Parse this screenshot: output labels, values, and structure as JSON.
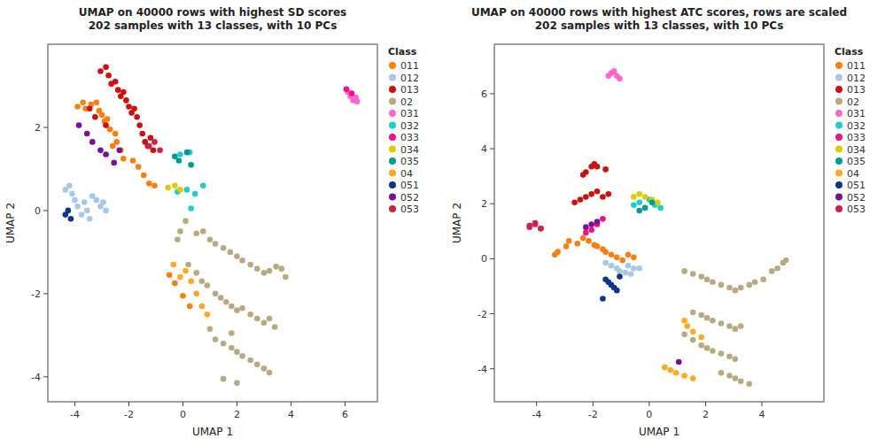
{
  "chart_data": [
    {
      "type": "scatter",
      "title": "UMAP on 40000 rows with highest SD scores\n202 samples with 13 classes, with 10 PCs",
      "xlabel": "UMAP 1",
      "ylabel": "UMAP 2",
      "legend_title": "Class",
      "legend": "right",
      "grid": false,
      "xlim": [
        -5.0,
        7.2
      ],
      "ylim": [
        -4.6,
        4.0
      ],
      "xticks": [
        -4,
        -2,
        0,
        2,
        4,
        6
      ],
      "yticks": [
        -4,
        -2,
        0,
        2
      ],
      "series": [
        {
          "name": "011",
          "color": "#F97F10",
          "x": [
            -3.9,
            -3.7,
            -3.6,
            -3.4,
            -3.2,
            -3.1,
            -3.0,
            -2.9,
            -2.8,
            -2.7,
            -2.5,
            -2.6,
            -2.45,
            -2.3,
            -2.2,
            -1.85,
            -1.65,
            -1.45,
            -1.25,
            -1.05,
            -0.5,
            -0.3,
            0.0,
            0.25
          ],
          "values": [
            2.5,
            2.6,
            2.45,
            2.55,
            2.6,
            2.4,
            2.3,
            2.15,
            2.2,
            1.95,
            1.85,
            1.55,
            1.65,
            1.45,
            1.25,
            1.2,
            1.05,
            0.85,
            0.65,
            0.6,
            -1.55,
            -1.75,
            -2.05,
            -2.3
          ]
        },
        {
          "name": "012",
          "color": "#A8C8E8",
          "x": [
            -4.35,
            -4.2,
            -4.1,
            -4.0,
            -3.9,
            -3.75,
            -3.65,
            -3.55,
            -3.45,
            -3.35,
            -3.2,
            -3.05,
            -2.95,
            -2.85
          ],
          "values": [
            0.5,
            0.6,
            0.4,
            0.25,
            0.1,
            -0.1,
            0.2,
            0.0,
            -0.2,
            0.35,
            0.25,
            0.1,
            0.2,
            0.0
          ]
        },
        {
          "name": "013",
          "color": "#CC1111",
          "x": [
            -3.05,
            -2.85,
            -2.75,
            -2.65,
            -2.5,
            -2.4,
            -2.3,
            -2.2,
            -2.1,
            -2.0,
            -1.9,
            -1.8,
            -1.7,
            -1.6,
            -1.5,
            -1.4,
            -1.3,
            -1.2,
            -1.1,
            -3.45,
            -3.25,
            -2.85
          ],
          "values": [
            3.35,
            3.45,
            3.25,
            3.05,
            3.1,
            2.9,
            2.75,
            2.85,
            2.65,
            2.5,
            2.35,
            2.45,
            2.25,
            2.05,
            1.85,
            1.65,
            1.55,
            1.75,
            1.45,
            2.45,
            2.25,
            2.05
          ]
        },
        {
          "name": "02",
          "color": "#B8AA80",
          "x": [
            0.1,
            0.5,
            0.75,
            1.0,
            1.2,
            1.5,
            1.75,
            2.0,
            2.2,
            2.5,
            2.75,
            3.0,
            3.2,
            3.45,
            3.65,
            3.8,
            -0.2,
            -0.1,
            0.2,
            0.5,
            0.7,
            0.9,
            1.2,
            1.4,
            1.6,
            1.8,
            2.0,
            2.2,
            2.5,
            2.75,
            3.0,
            3.2,
            3.4,
            1.0,
            1.2,
            1.5,
            1.8,
            2.0,
            2.2,
            2.5,
            2.75,
            3.0,
            3.2,
            1.5,
            2.0,
            1.8
          ],
          "values": [
            -0.25,
            -0.55,
            -0.5,
            -0.7,
            -0.8,
            -0.9,
            -1.0,
            -1.1,
            -1.2,
            -1.3,
            -1.4,
            -1.5,
            -1.45,
            -1.35,
            -1.4,
            -1.6,
            -0.7,
            -0.5,
            -1.3,
            -1.5,
            -1.7,
            -1.8,
            -2.0,
            -2.1,
            -2.2,
            -2.3,
            -2.4,
            -2.35,
            -2.5,
            -2.6,
            -2.7,
            -2.6,
            -2.8,
            -2.85,
            -3.1,
            -3.2,
            -3.3,
            -3.4,
            -3.5,
            -3.6,
            -3.7,
            -3.8,
            -3.9,
            -4.05,
            -4.15,
            -2.95
          ]
        },
        {
          "name": "031",
          "color": "#FF66CC",
          "x": [
            6.1,
            6.2,
            6.3,
            6.4,
            6.45
          ],
          "values": [
            2.85,
            2.75,
            2.65,
            2.72,
            2.62
          ]
        },
        {
          "name": "032",
          "color": "#22CCCC",
          "x": [
            -0.2,
            0.15,
            0.45,
            0.75,
            0.3,
            -0.1,
            0.25
          ],
          "values": [
            0.45,
            0.5,
            0.4,
            0.6,
            0.05,
            1.35,
            1.4
          ]
        },
        {
          "name": "033",
          "color": "#EE1188",
          "x": [
            6.05,
            6.25
          ],
          "values": [
            2.92,
            2.82
          ]
        },
        {
          "name": "034",
          "color": "#DDCC00",
          "x": [
            -0.55,
            -0.3,
            -0.1
          ],
          "values": [
            0.55,
            0.6,
            0.5
          ]
        },
        {
          "name": "035",
          "color": "#009999",
          "x": [
            -0.3,
            0.15,
            -0.15,
            0.3
          ],
          "values": [
            1.3,
            1.4,
            1.2,
            1.1
          ]
        },
        {
          "name": "04",
          "color": "#FFAA22",
          "x": [
            -0.35,
            -0.1,
            0.1,
            0.3,
            0.5,
            0.7,
            0.9
          ],
          "values": [
            -1.3,
            -1.6,
            -1.45,
            -1.7,
            -2.0,
            -2.3,
            -2.5
          ]
        },
        {
          "name": "051",
          "color": "#113388",
          "x": [
            -4.35,
            -4.25,
            -4.15
          ],
          "values": [
            -0.1,
            0.0,
            -0.2
          ]
        },
        {
          "name": "052",
          "color": "#771199",
          "x": [
            -3.85,
            -3.55,
            -3.35,
            -3.05,
            -2.85,
            -2.55,
            -2.35
          ],
          "values": [
            2.05,
            1.85,
            1.65,
            1.45,
            1.35,
            1.15,
            1.45
          ]
        },
        {
          "name": "053",
          "color": "#CC2244",
          "x": [
            -1.25,
            -1.05,
            -0.85
          ],
          "values": [
            1.55,
            1.65,
            1.45
          ]
        }
      ]
    },
    {
      "type": "scatter",
      "title": "UMAP on 40000 rows with highest ATC scores, rows are scaled\n202 samples with 13 classes, with 10 PCs",
      "xlabel": "UMAP 1",
      "ylabel": "UMAP 2",
      "legend_title": "Class",
      "legend": "right",
      "grid": false,
      "xlim": [
        -5.5,
        6.2
      ],
      "ylim": [
        -5.2,
        7.8
      ],
      "xticks": [
        -4,
        -2,
        0,
        2,
        4
      ],
      "yticks": [
        -4,
        -2,
        0,
        2,
        4,
        6
      ],
      "series": [
        {
          "name": "011",
          "color": "#F97F10",
          "x": [
            -2.55,
            -2.35,
            -2.15,
            -1.95,
            -1.85,
            -1.65,
            -1.55,
            -1.35,
            -1.15,
            -0.95,
            -0.75,
            -0.55,
            -2.85,
            -2.95,
            -3.25,
            -3.35
          ],
          "values": [
            0.55,
            0.75,
            0.65,
            0.5,
            0.45,
            0.35,
            0.25,
            0.15,
            0.05,
            -0.05,
            0.15,
            0.05,
            0.65,
            0.45,
            0.25,
            0.15
          ]
        },
        {
          "name": "012",
          "color": "#A8C8E8",
          "x": [
            -1.55,
            -1.35,
            -1.15,
            -1.05,
            -0.85,
            -0.65,
            -0.75,
            -0.55,
            -0.35
          ],
          "values": [
            -0.15,
            -0.25,
            -0.35,
            -0.45,
            -0.5,
            -0.55,
            -0.25,
            -0.35,
            -0.35
          ]
        },
        {
          "name": "013",
          "color": "#CC1111",
          "x": [
            -2.25,
            -2.05,
            -1.85,
            -2.45,
            -2.65,
            -1.65,
            -1.45,
            -2.05,
            -1.95,
            -1.85,
            -1.55,
            -2.25,
            -2.35
          ],
          "values": [
            2.25,
            2.35,
            2.45,
            2.15,
            2.05,
            2.25,
            2.35,
            3.35,
            3.45,
            3.35,
            3.25,
            3.15,
            3.05
          ]
        },
        {
          "name": "02",
          "color": "#B8AA80",
          "x": [
            1.25,
            1.55,
            1.85,
            2.05,
            2.25,
            2.55,
            2.85,
            3.05,
            3.25,
            3.55,
            3.75,
            4.05,
            4.35,
            4.55,
            4.75,
            4.85,
            1.55,
            1.85,
            2.05,
            2.25,
            2.55,
            2.85,
            3.05,
            3.25,
            1.25,
            1.55,
            1.85,
            2.05,
            2.25,
            2.55,
            2.85,
            3.05,
            2.55,
            2.85,
            3.05,
            3.25,
            3.55
          ],
          "values": [
            -0.45,
            -0.55,
            -0.65,
            -0.75,
            -0.85,
            -0.95,
            -1.05,
            -1.15,
            -1.05,
            -0.95,
            -0.85,
            -0.75,
            -0.45,
            -0.35,
            -0.15,
            -0.05,
            -1.95,
            -2.05,
            -2.15,
            -2.25,
            -2.35,
            -2.45,
            -2.55,
            -2.45,
            -2.75,
            -2.95,
            -3.15,
            -3.25,
            -3.35,
            -3.45,
            -3.55,
            -3.65,
            -4.15,
            -4.25,
            -4.35,
            -4.45,
            -4.55
          ]
        },
        {
          "name": "031",
          "color": "#FF66CC",
          "x": [
            -1.45,
            -1.35,
            -1.25,
            -1.15,
            -1.05
          ],
          "values": [
            6.65,
            6.75,
            6.82,
            6.65,
            6.55
          ]
        },
        {
          "name": "032",
          "color": "#22CCCC",
          "x": [
            -0.35,
            0.0,
            -0.55,
            0.2,
            0.4
          ],
          "values": [
            2.05,
            2.15,
            1.95,
            1.95,
            1.85
          ]
        },
        {
          "name": "033",
          "color": "#EE1188",
          "x": [
            -2.05,
            -1.85,
            -1.65,
            -2.25,
            -4.25,
            -4.05,
            -3.85
          ],
          "values": [
            1.05,
            1.25,
            1.45,
            0.95,
            1.15,
            1.25,
            1.1
          ]
        },
        {
          "name": "034",
          "color": "#DDCC00",
          "x": [
            -0.55,
            -0.35,
            -0.15,
            0.1,
            0.3
          ],
          "values": [
            2.25,
            2.35,
            2.25,
            2.15,
            2.05
          ]
        },
        {
          "name": "035",
          "color": "#009999",
          "x": [
            -0.15,
            0.1,
            -0.35
          ],
          "values": [
            1.85,
            2.05,
            1.75
          ]
        },
        {
          "name": "04",
          "color": "#FFAA22",
          "x": [
            1.25,
            1.35,
            1.55,
            1.85,
            0.55,
            0.75,
            0.95,
            1.25,
            1.55
          ],
          "values": [
            -2.25,
            -2.45,
            -2.65,
            -2.85,
            -3.95,
            -4.05,
            -4.15,
            -4.25,
            -4.35
          ]
        },
        {
          "name": "051",
          "color": "#113388",
          "x": [
            -1.55,
            -1.45,
            -1.35,
            -1.25,
            -1.15,
            -1.05,
            -1.65
          ],
          "values": [
            -0.75,
            -0.85,
            -0.95,
            -1.05,
            -1.15,
            -0.65,
            -1.45
          ]
        },
        {
          "name": "052",
          "color": "#771199",
          "x": [
            -2.05,
            -1.85,
            -2.25,
            1.05
          ],
          "values": [
            1.25,
            1.35,
            1.15,
            -3.75
          ]
        },
        {
          "name": "053",
          "color": "#CC2244",
          "x": [
            -4.25,
            -4.05,
            -3.85
          ],
          "values": [
            1.2,
            1.3,
            1.1
          ]
        }
      ]
    }
  ]
}
